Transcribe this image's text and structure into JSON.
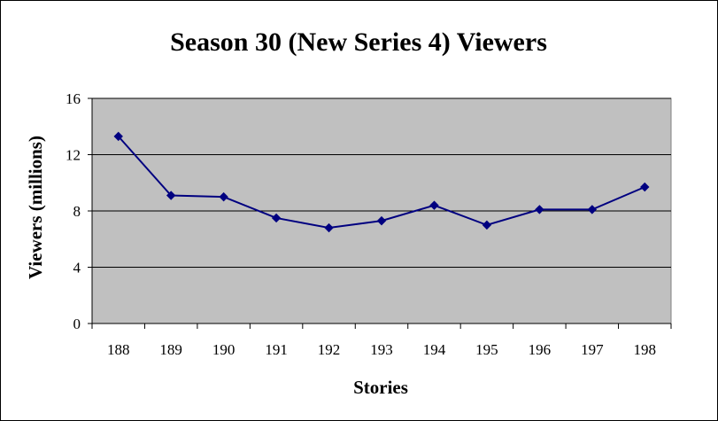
{
  "chart_data": {
    "type": "line",
    "title": "Season 30 (New Series 4) Viewers",
    "xlabel": "Stories",
    "ylabel": "Viewers (millions)",
    "categories": [
      "188",
      "189",
      "190",
      "191",
      "192",
      "193",
      "194",
      "195",
      "196",
      "197",
      "198"
    ],
    "series": [
      {
        "values": [
          13.3,
          9.1,
          9.0,
          7.5,
          6.8,
          7.3,
          8.4,
          7.0,
          8.1,
          8.1,
          9.7
        ]
      }
    ],
    "ylim": [
      0,
      16
    ],
    "yticks": [
      0,
      4,
      8,
      12,
      16
    ],
    "grid": true,
    "legend": "none",
    "colors": {
      "plot_background": "#c0c0c0",
      "line": "#000080",
      "gridline": "#000000"
    }
  }
}
